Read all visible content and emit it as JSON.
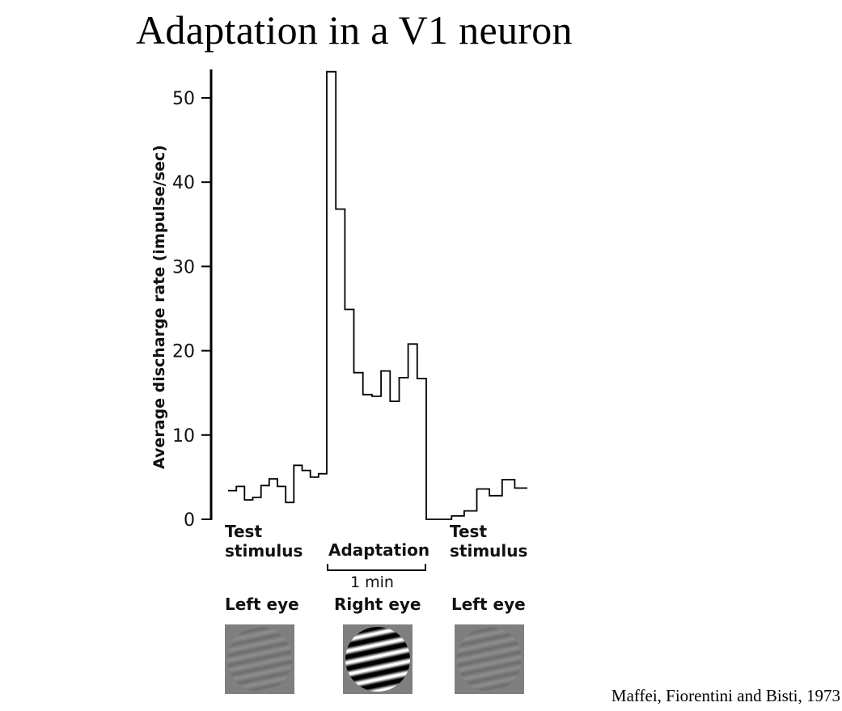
{
  "title": "Adaptation in a V1 neuron",
  "citation": "Maffei, Fiorentini and Bisti, 1973",
  "stimuli": [
    {
      "phase": "Test\nstimulus",
      "eye": "Left eye",
      "contrast": "low"
    },
    {
      "phase": "Adaptation",
      "eye": "Right eye",
      "contrast": "high"
    },
    {
      "phase": "Test\nstimulus",
      "eye": "Left eye",
      "contrast": "low"
    }
  ],
  "duration_label": "1 min",
  "chart_data": {
    "type": "line",
    "step": true,
    "ylabel": "Average discharge rate (impulse/sec)",
    "xlabel": "",
    "ylim": [
      0,
      53
    ],
    "yticks": [
      0,
      10,
      20,
      30,
      40,
      50
    ],
    "series": [
      {
        "name": "",
        "segments": [
          {
            "phase": "test_left_before",
            "values": [
              3.4,
              3.9,
              2.3,
              2.6,
              4.0,
              4.8,
              3.9,
              2.0,
              6.4,
              5.8,
              5.0,
              5.4
            ]
          },
          {
            "phase": "adaptation",
            "values": [
              53.1,
              36.8,
              24.9,
              17.4,
              14.8,
              14.6,
              17.6,
              14.0,
              16.8,
              20.8,
              16.7
            ]
          },
          {
            "phase": "test_left_after",
            "values": [
              0.0,
              0.0,
              0.4,
              1.0,
              3.6,
              2.8,
              4.7,
              3.7
            ]
          }
        ]
      }
    ]
  }
}
